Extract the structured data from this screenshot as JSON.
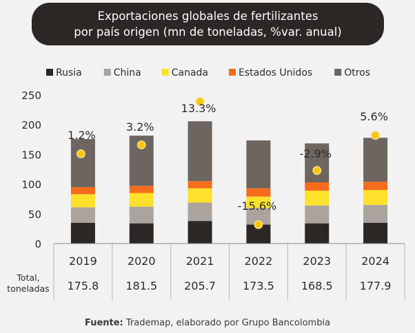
{
  "title": {
    "line1": "Exportaciones globales de fertilizantes",
    "line2": "por país origen (mn de toneladas, %var. anual)"
  },
  "source": {
    "label": "Fuente:",
    "text": " Trademap, elaborado por Grupo Bancolombia"
  },
  "colors": {
    "background": "#f2f2f2",
    "title_bg": "#2b2724",
    "marker": "#f7c600",
    "marker_edge": "#f5d76e",
    "axis": "#888888"
  },
  "chart_data": {
    "type": "bar",
    "stacked": true,
    "categories": [
      "2019",
      "2020",
      "2021",
      "2022",
      "2023",
      "2024"
    ],
    "ylim": [
      0,
      250
    ],
    "yticks": [
      0,
      50,
      100,
      150,
      200,
      250
    ],
    "legend_position": "top",
    "series": [
      {
        "name": "Rusia",
        "color": "#2b2724",
        "values": [
          35,
          34,
          38,
          32,
          34,
          35
        ]
      },
      {
        "name": "China",
        "color": "#aaa39e",
        "values": [
          26,
          28,
          31,
          28,
          30,
          30
        ]
      },
      {
        "name": "Canada",
        "color": "#fde12a",
        "values": [
          22,
          23,
          24,
          19,
          25,
          25
        ]
      },
      {
        "name": "Estados Unidos",
        "color": "#f56d1c",
        "values": [
          12,
          12,
          12,
          14,
          14,
          14
        ]
      },
      {
        "name": "Otros",
        "color": "#6d655f",
        "values": [
          80.8,
          84.5,
          100.7,
          80.5,
          65.5,
          73.9
        ]
      }
    ],
    "annual_change": {
      "labels": [
        "1.2%",
        "3.2%",
        "13.3%",
        "-15.6%",
        "-2.9%",
        "5.6%"
      ],
      "values": [
        1.2,
        3.2,
        13.3,
        -15.6,
        -2.9,
        5.6
      ],
      "marker_y": [
        151,
        166,
        239,
        32,
        123,
        182
      ]
    },
    "totals_row": {
      "label_line1": "Total,",
      "label_line2": "toneladas",
      "values": [
        "175.8",
        "181.5",
        "205.7",
        "173.5",
        "168.5",
        "177.9"
      ]
    }
  }
}
